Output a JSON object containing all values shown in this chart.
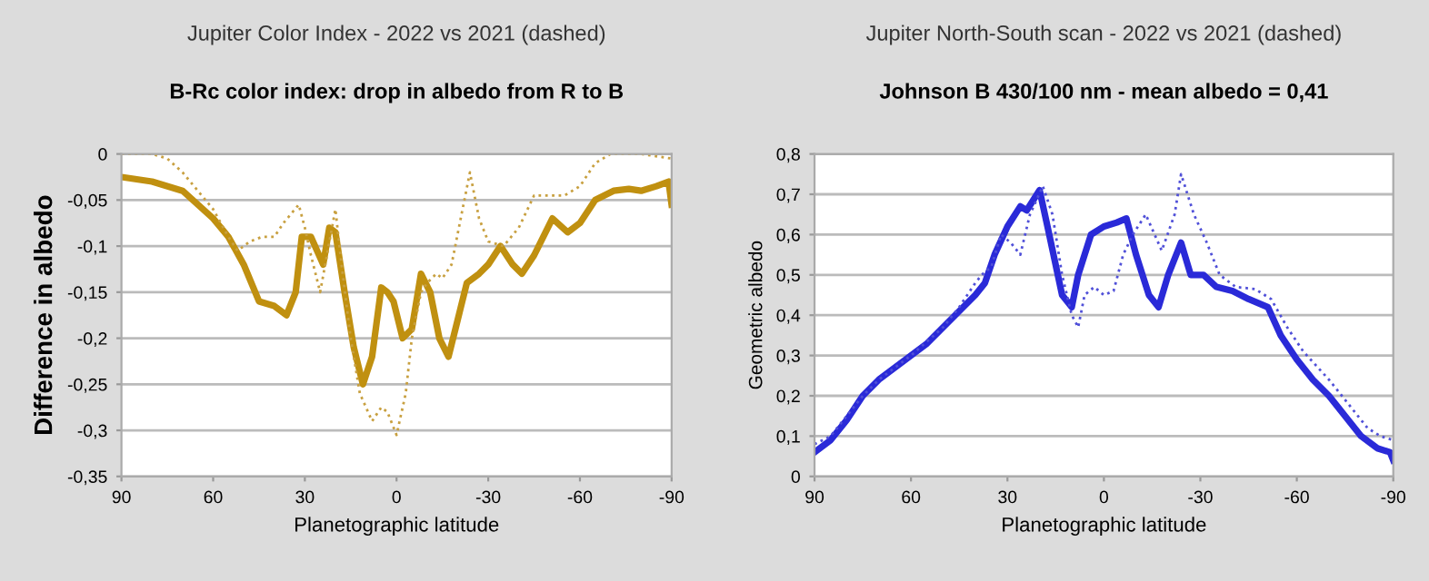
{
  "chart_data": [
    {
      "type": "line",
      "title": "Jupiter Color Index - 2022 vs 2021 (dashed)",
      "subtitle": "B-Rc color index: drop in albedo from R to B",
      "xlabel": "Planetographic latitude",
      "ylabel": "Difference in albedo",
      "xlim": [
        90,
        -90
      ],
      "xticks": [
        90,
        60,
        30,
        0,
        {
          "value": -30,
          "label": "-30"
        },
        {
          "value": -60,
          "label": "-60"
        },
        {
          "value": -90,
          "label": "-90"
        }
      ],
      "ylim": [
        -0.35,
        0
      ],
      "yticks": [
        0,
        {
          "value": -0.05,
          "label": "-0,05"
        },
        {
          "value": -0.1,
          "label": "-0,1"
        },
        {
          "value": -0.15,
          "label": "-0,15"
        },
        {
          "value": -0.2,
          "label": "-0,2"
        },
        {
          "value": -0.25,
          "label": "-0,25"
        },
        {
          "value": -0.3,
          "label": "-0,3"
        },
        {
          "value": -0.35,
          "label": "-0,35"
        }
      ],
      "grid": "y",
      "legend": false,
      "series": [
        {
          "color": "#c09010",
          "line_style": "solid",
          "x": [
            90,
            80,
            70,
            60,
            55,
            50,
            45,
            40,
            36,
            33,
            31,
            28,
            24,
            22,
            20,
            17,
            14,
            11,
            8,
            5,
            3,
            1,
            -2,
            -5,
            -8,
            -11,
            -14,
            -17,
            -20,
            -23,
            -27,
            -30,
            -34,
            -38,
            -41,
            -45,
            -51,
            -56,
            -60,
            -65,
            -71,
            -76,
            -80,
            -85,
            -89,
            -90
          ],
          "values": [
            -0.025,
            -0.03,
            -0.04,
            -0.07,
            -0.09,
            -0.12,
            -0.16,
            -0.165,
            -0.175,
            -0.15,
            -0.09,
            -0.09,
            -0.12,
            -0.08,
            -0.085,
            -0.15,
            -0.21,
            -0.25,
            -0.22,
            -0.145,
            -0.15,
            -0.16,
            -0.2,
            -0.19,
            -0.13,
            -0.15,
            -0.2,
            -0.22,
            -0.18,
            -0.14,
            -0.13,
            -0.12,
            -0.1,
            -0.12,
            -0.13,
            -0.11,
            -0.07,
            -0.085,
            -0.075,
            -0.05,
            -0.04,
            -0.038,
            -0.04,
            -0.035,
            -0.03,
            -0.055
          ]
        },
        {
          "color": "#c8a040",
          "line_style": "dotted",
          "x": [
            90,
            80,
            75,
            70,
            60,
            55,
            52,
            48,
            44,
            40,
            37,
            32,
            30,
            28,
            25,
            20,
            18,
            15,
            12,
            8,
            5,
            3,
            0,
            -3,
            -5,
            -8,
            -10,
            -13,
            -15,
            -18,
            -21,
            -24,
            -27,
            -30,
            -35,
            -40,
            -45,
            -50,
            -55,
            -60,
            -65,
            -70,
            -80,
            -90
          ],
          "values": [
            0,
            0,
            -0.005,
            -0.02,
            -0.06,
            -0.09,
            -0.105,
            -0.095,
            -0.09,
            -0.09,
            -0.075,
            -0.055,
            -0.08,
            -0.11,
            -0.15,
            -0.06,
            -0.12,
            -0.2,
            -0.26,
            -0.29,
            -0.275,
            -0.28,
            -0.305,
            -0.26,
            -0.2,
            -0.15,
            -0.14,
            -0.13,
            -0.135,
            -0.12,
            -0.07,
            -0.02,
            -0.07,
            -0.095,
            -0.1,
            -0.08,
            -0.045,
            -0.045,
            -0.045,
            -0.035,
            -0.01,
            0,
            0,
            -0.005
          ]
        }
      ]
    },
    {
      "type": "line",
      "title": "Jupiter North-South scan - 2022 vs 2021 (dashed)",
      "subtitle": "Johnson B 430/100 nm - mean albedo = 0,41",
      "xlabel": "Planetographic latitude",
      "ylabel": "Geometric albedo",
      "xlim": [
        90,
        -90
      ],
      "xticks": [
        90,
        60,
        30,
        0,
        {
          "value": -30,
          "label": "-30"
        },
        {
          "value": -60,
          "label": "-60"
        },
        {
          "value": -90,
          "label": "-90"
        }
      ],
      "ylim": [
        0,
        0.8
      ],
      "yticks": [
        0,
        {
          "value": 0.1,
          "label": "0,1"
        },
        {
          "value": 0.2,
          "label": "0,2"
        },
        {
          "value": 0.3,
          "label": "0,3"
        },
        {
          "value": 0.4,
          "label": "0,4"
        },
        {
          "value": 0.5,
          "label": "0,5"
        },
        {
          "value": 0.6,
          "label": "0,6"
        },
        {
          "value": 0.7,
          "label": "0,7"
        },
        {
          "value": 0.8,
          "label": "0,8"
        }
      ],
      "grid": "y",
      "legend": false,
      "series": [
        {
          "color": "#2a2ad8",
          "line_style": "solid",
          "x": [
            90,
            85,
            80,
            75,
            70,
            65,
            60,
            55,
            50,
            45,
            40,
            37,
            34,
            30,
            26,
            24,
            20,
            17,
            13,
            10,
            8,
            4,
            0,
            -4,
            -7,
            -10,
            -14,
            -17,
            -20,
            -24,
            -27,
            -31,
            -35,
            -40,
            -45,
            -51,
            -55,
            -60,
            -65,
            -70,
            -75,
            -80,
            -85,
            -89,
            -90
          ],
          "values": [
            0.06,
            0.09,
            0.14,
            0.2,
            0.24,
            0.27,
            0.3,
            0.33,
            0.37,
            0.41,
            0.45,
            0.48,
            0.55,
            0.62,
            0.67,
            0.66,
            0.71,
            0.6,
            0.45,
            0.42,
            0.5,
            0.6,
            0.62,
            0.63,
            0.64,
            0.55,
            0.45,
            0.42,
            0.5,
            0.58,
            0.5,
            0.5,
            0.47,
            0.46,
            0.44,
            0.42,
            0.35,
            0.29,
            0.24,
            0.2,
            0.15,
            0.1,
            0.07,
            0.06,
            0.04
          ]
        },
        {
          "color": "#5050d8",
          "line_style": "dotted",
          "x": [
            90,
            85,
            80,
            75,
            70,
            60,
            50,
            45,
            40,
            38,
            35,
            32,
            29,
            26,
            23,
            19,
            16,
            13,
            10,
            8,
            6,
            3,
            0,
            -3,
            -6,
            -9,
            -13,
            -18,
            -22,
            -24,
            -28,
            -32,
            -36,
            -41,
            -47,
            -52,
            -57,
            -62,
            -70,
            -77,
            -82,
            -86,
            -90
          ],
          "values": [
            0.08,
            0.1,
            0.15,
            0.2,
            0.24,
            0.3,
            0.37,
            0.42,
            0.48,
            0.5,
            0.52,
            0.6,
            0.58,
            0.55,
            0.65,
            0.72,
            0.65,
            0.5,
            0.4,
            0.37,
            0.45,
            0.47,
            0.45,
            0.46,
            0.55,
            0.6,
            0.65,
            0.56,
            0.65,
            0.75,
            0.65,
            0.58,
            0.5,
            0.47,
            0.465,
            0.44,
            0.37,
            0.31,
            0.24,
            0.17,
            0.12,
            0.1,
            0.09
          ]
        }
      ]
    }
  ]
}
